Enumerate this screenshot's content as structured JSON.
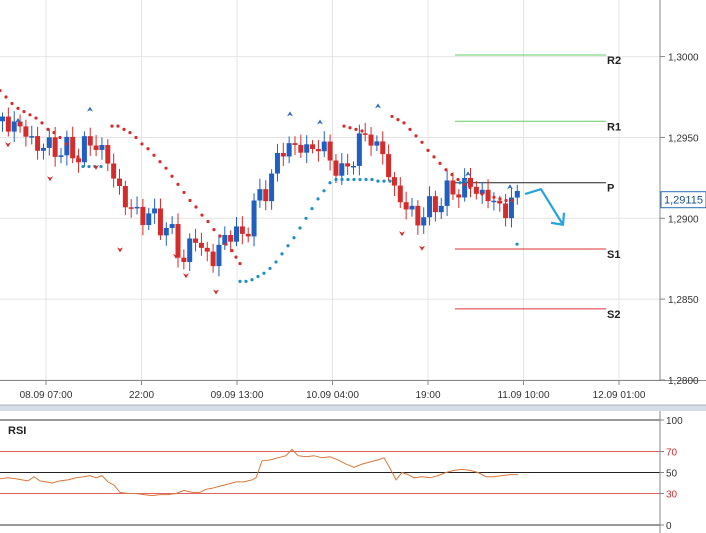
{
  "chart_data": [
    {
      "type": "candlestick",
      "y_ticks": [
        "1,3000",
        "1,2950",
        "1,2900",
        "1,2850",
        "1,2800"
      ],
      "y_tick_values": [
        1.3,
        1.295,
        1.29,
        1.285,
        1.28
      ],
      "ylim": [
        1.28,
        1.3035
      ],
      "x_tick_labels": [
        "08.09 07:00",
        "22:00",
        "09.09 13:00",
        "10.09 04:00",
        "19:00",
        "11.09 10:00",
        "12.09 01:00"
      ],
      "current_price": {
        "label": "1,29115",
        "value": 1.29115,
        "color": "#2b6db3"
      },
      "pivot_levels": [
        {
          "name": "R2",
          "value": 1.3001,
          "color": "#66cc66"
        },
        {
          "name": "R1",
          "value": 1.296,
          "color": "#66cc66"
        },
        {
          "name": "P",
          "value": 1.2922,
          "color": "#222222"
        },
        {
          "name": "S1",
          "value": 1.2881,
          "color": "#dd3333"
        },
        {
          "name": "S2",
          "value": 1.2844,
          "color": "#dd3333"
        }
      ],
      "colors": {
        "bull": "#1f5fbf",
        "bear": "#d42b2b",
        "sar_above": "#d42b2b",
        "sar_below": "#1e90c0",
        "arrow": "#29a3dc"
      },
      "sar_above": [
        [
          0,
          1.2979
        ],
        [
          6,
          1.2975
        ],
        [
          12,
          1.2971
        ],
        [
          18,
          1.2968
        ],
        [
          24,
          1.2966
        ],
        [
          30,
          1.2964
        ],
        [
          36,
          1.2962
        ],
        [
          42,
          1.2959
        ],
        [
          48,
          1.2955
        ],
        [
          54,
          1.2953
        ],
        [
          60,
          1.295
        ],
        [
          66,
          1.2946
        ],
        [
          72,
          1.2942
        ],
        [
          78,
          1.2938
        ],
        [
          112,
          1.2957
        ],
        [
          118,
          1.2957
        ],
        [
          124,
          1.2955
        ],
        [
          130,
          1.2953
        ],
        [
          136,
          1.295
        ],
        [
          142,
          1.2946
        ],
        [
          148,
          1.2943
        ],
        [
          154,
          1.2939
        ],
        [
          160,
          1.2935
        ],
        [
          166,
          1.2931
        ],
        [
          172,
          1.2926
        ],
        [
          178,
          1.2921
        ],
        [
          184,
          1.2916
        ],
        [
          190,
          1.2911
        ],
        [
          196,
          1.2907
        ],
        [
          202,
          1.2902
        ],
        [
          208,
          1.2898
        ],
        [
          214,
          1.2893
        ],
        [
          220,
          1.2889
        ],
        [
          226,
          1.2884
        ],
        [
          232,
          1.288
        ],
        [
          236,
          1.2876
        ],
        [
          240,
          1.2872
        ],
        [
          344,
          1.2957
        ],
        [
          350,
          1.2956
        ],
        [
          356,
          1.2955
        ],
        [
          362,
          1.2954
        ],
        [
          392,
          1.2963
        ],
        [
          398,
          1.2961
        ],
        [
          404,
          1.2959
        ],
        [
          410,
          1.2955
        ],
        [
          416,
          1.2951
        ],
        [
          422,
          1.2947
        ],
        [
          428,
          1.2942
        ],
        [
          434,
          1.2938
        ],
        [
          440,
          1.2934
        ],
        [
          446,
          1.293
        ],
        [
          452,
          1.2927
        ],
        [
          458,
          1.2924
        ],
        [
          464,
          1.2921
        ],
        [
          470,
          1.2919
        ],
        [
          476,
          1.2917
        ],
        [
          482,
          1.2915
        ],
        [
          488,
          1.2914
        ],
        [
          494,
          1.2913
        ],
        [
          500,
          1.2912
        ],
        [
          506,
          1.2911
        ],
        [
          512,
          1.2911
        ]
      ],
      "sar_below": [
        [
          83,
          1.2932
        ],
        [
          89,
          1.2932
        ],
        [
          95,
          1.2932
        ],
        [
          101,
          1.2932
        ],
        [
          240,
          1.2861
        ],
        [
          246,
          1.2861
        ],
        [
          252,
          1.2862
        ],
        [
          258,
          1.2864
        ],
        [
          264,
          1.2866
        ],
        [
          270,
          1.2869
        ],
        [
          276,
          1.2873
        ],
        [
          282,
          1.2878
        ],
        [
          288,
          1.2883
        ],
        [
          294,
          1.2888
        ],
        [
          300,
          1.2894
        ],
        [
          306,
          1.29
        ],
        [
          312,
          1.2906
        ],
        [
          318,
          1.2912
        ],
        [
          324,
          1.2917
        ],
        [
          330,
          1.2922
        ],
        [
          336,
          1.2924
        ],
        [
          342,
          1.2924
        ],
        [
          348,
          1.2924
        ],
        [
          354,
          1.2924
        ],
        [
          360,
          1.2924
        ],
        [
          366,
          1.2924
        ],
        [
          372,
          1.2924
        ],
        [
          378,
          1.2923
        ],
        [
          384,
          1.2923
        ],
        [
          390,
          1.2923
        ],
        [
          460,
          1.2922
        ],
        [
          466,
          1.2923
        ],
        [
          517,
          1.2884
        ]
      ],
      "fractals_up": [
        [
          18,
          1.2959
        ],
        [
          90,
          1.2966
        ],
        [
          290,
          1.2963
        ],
        [
          320,
          1.2958
        ],
        [
          378,
          1.2968
        ],
        [
          468,
          1.2926
        ],
        [
          510,
          1.2918
        ]
      ],
      "fractals_down": [
        [
          8,
          1.2947
        ],
        [
          50,
          1.2926
        ],
        [
          96,
          1.2933
        ],
        [
          120,
          1.2882
        ],
        [
          176,
          1.2878
        ],
        [
          186,
          1.2866
        ],
        [
          216,
          1.2856
        ],
        [
          402,
          1.2892
        ],
        [
          422,
          1.2883
        ]
      ],
      "forecast_arrow": {
        "from": [
          525,
          1.2915
        ],
        "mid": [
          541,
          1.2918
        ],
        "to": [
          563,
          1.2896
        ]
      }
    },
    {
      "type": "line",
      "title": "RSI",
      "y_ticks": [
        "100",
        "70",
        "50",
        "30",
        "0"
      ],
      "y_tick_values": [
        100,
        70,
        50,
        30,
        0
      ],
      "ylim": [
        0,
        100
      ],
      "levels": [
        70,
        50,
        30
      ],
      "color": "#d9773b",
      "series": [
        {
          "x": [
            0,
            8,
            16,
            22,
            28,
            34,
            40,
            46,
            52,
            60,
            68,
            76,
            84,
            90,
            96,
            102,
            108,
            114,
            120,
            128,
            136,
            144,
            152,
            160,
            168,
            176,
            184,
            192,
            200,
            206,
            212,
            220,
            228,
            236,
            244,
            252,
            256,
            262,
            270,
            278,
            286,
            292,
            298,
            306,
            314,
            322,
            330,
            338,
            346,
            354,
            362,
            370,
            378,
            384,
            390,
            396,
            402,
            408,
            414,
            422,
            430,
            438,
            446,
            454,
            462,
            470,
            478,
            486,
            494,
            502,
            510,
            518
          ],
          "y": [
            44,
            45,
            44,
            43,
            42,
            46,
            42,
            41,
            40,
            42,
            43,
            45,
            46,
            47,
            45,
            47,
            41,
            38,
            31,
            30,
            30,
            29,
            28,
            29,
            29,
            30,
            33,
            31,
            31,
            34,
            35,
            37,
            39,
            41,
            41,
            43,
            45,
            61,
            62,
            64,
            66,
            72,
            66,
            65,
            66,
            64,
            65,
            62,
            58,
            55,
            58,
            60,
            62,
            64,
            54,
            43,
            50,
            48,
            45,
            46,
            45,
            47,
            50,
            52,
            53,
            52,
            50,
            46,
            46,
            47,
            48,
            48
          ]
        }
      ]
    }
  ]
}
